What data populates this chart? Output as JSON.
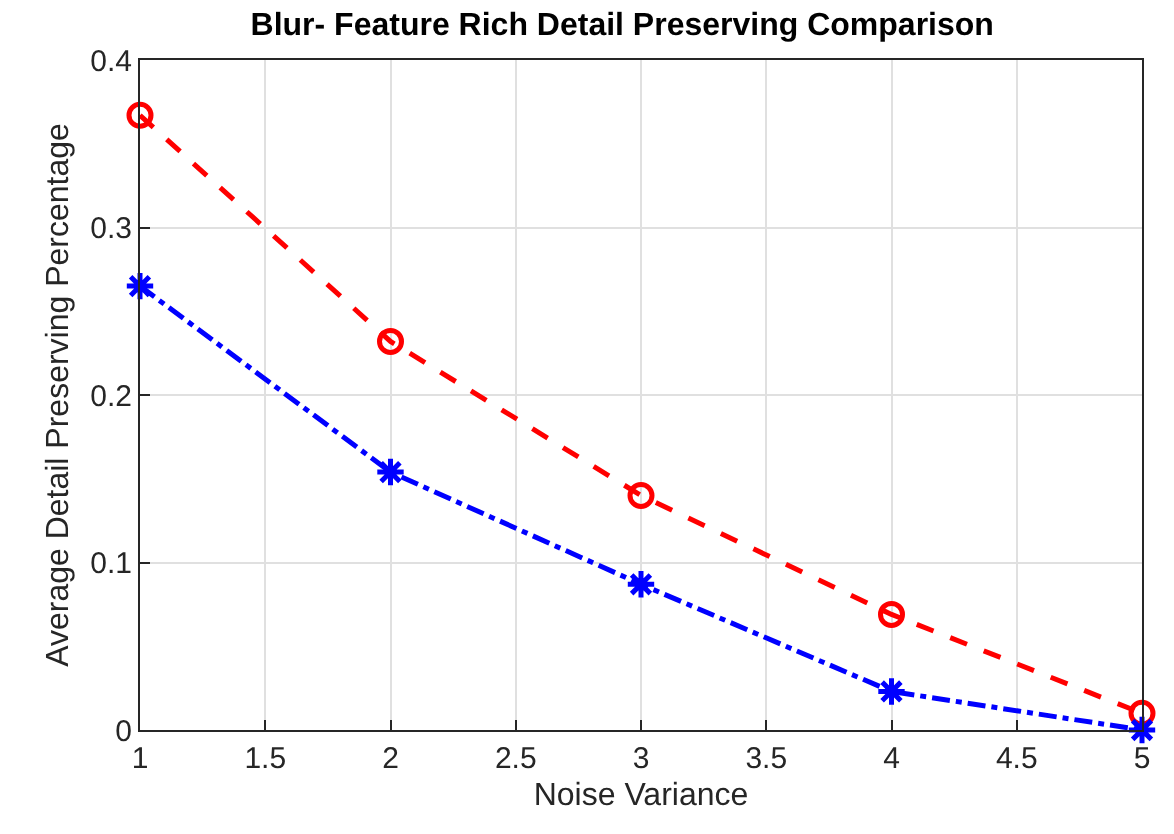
{
  "chart_data": {
    "type": "line",
    "title": "Blur- Feature Rich Detail Preserving Comparison",
    "xlabel": "Noise Variance",
    "ylabel": "Average Detail Preserving Percentage",
    "x": [
      1,
      2,
      3,
      4,
      5
    ],
    "series": [
      {
        "color": "#ff0000",
        "values": [
          0.367,
          0.232,
          0.14,
          0.069,
          0.01
        ],
        "marker": "circle",
        "line_style": "dashed"
      },
      {
        "color": "#0000ff",
        "values": [
          0.265,
          0.154,
          0.087,
          0.023,
          0.0
        ],
        "marker": "cross",
        "line_style": "dashdot"
      }
    ],
    "xlim": [
      1,
      5
    ],
    "xticks": [
      1,
      1.5,
      2,
      2.5,
      3,
      3.5,
      4,
      4.5,
      5
    ],
    "ylim": [
      0,
      0.4
    ],
    "yticks": [
      0,
      0.1,
      0.2,
      0.3,
      0.4
    ],
    "grid": true,
    "legend": false
  }
}
